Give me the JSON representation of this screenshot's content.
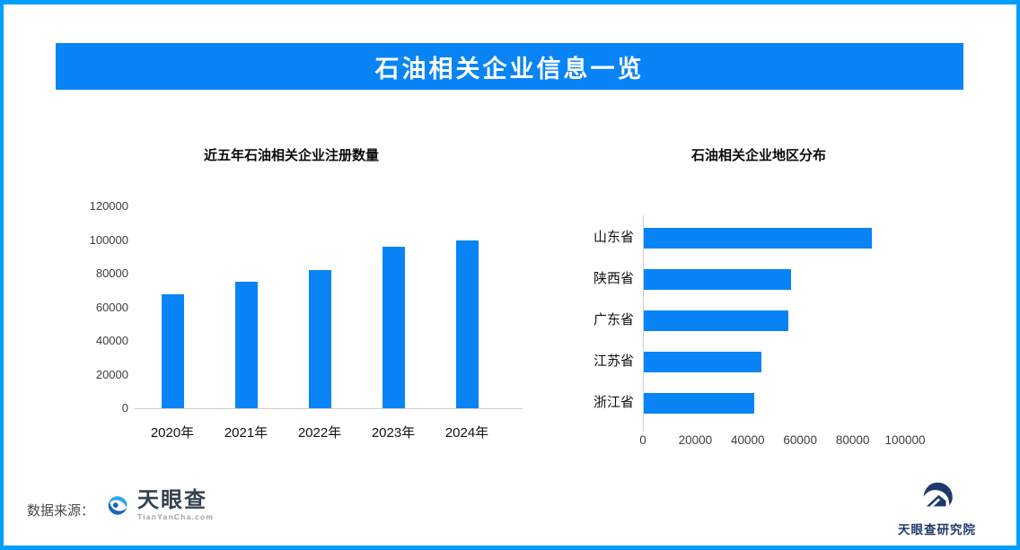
{
  "page_title": "石油相关企业信息一览",
  "colors": {
    "accent": "#0884F6",
    "border": "#009DFF",
    "bar": "#0884F6",
    "axis_line": "#CFCFCF",
    "banner_text": "#FFFFFF"
  },
  "chart_data": [
    {
      "type": "bar",
      "orientation": "vertical",
      "title": "近五年石油相关企业注册数量",
      "categories": [
        "2020年",
        "2021年",
        "2022年",
        "2023年",
        "2024年"
      ],
      "values": [
        68000,
        75000,
        82000,
        96000,
        99500
      ],
      "xlabel": "",
      "ylabel": "",
      "ylim": [
        0,
        120000
      ],
      "ytick_step": 20000,
      "grid": false,
      "legend": false,
      "bar_color": "#0884F6"
    },
    {
      "type": "bar",
      "orientation": "horizontal",
      "title": "石油相关企业地区分布",
      "categories": [
        "山东省",
        "陕西省",
        "广东省",
        "江苏省",
        "浙江省"
      ],
      "values": [
        87000,
        56000,
        55000,
        45000,
        42000
      ],
      "xlabel": "",
      "ylabel": "",
      "xlim": [
        0,
        100000
      ],
      "xtick_step": 20000,
      "grid": false,
      "legend": false,
      "bar_color": "#0884F6"
    }
  ],
  "footer": {
    "source_label": "数据来源：",
    "brand_name": "天眼查",
    "brand_domain": "TianYanCha.com",
    "institute_name": "天眼查研究院"
  }
}
